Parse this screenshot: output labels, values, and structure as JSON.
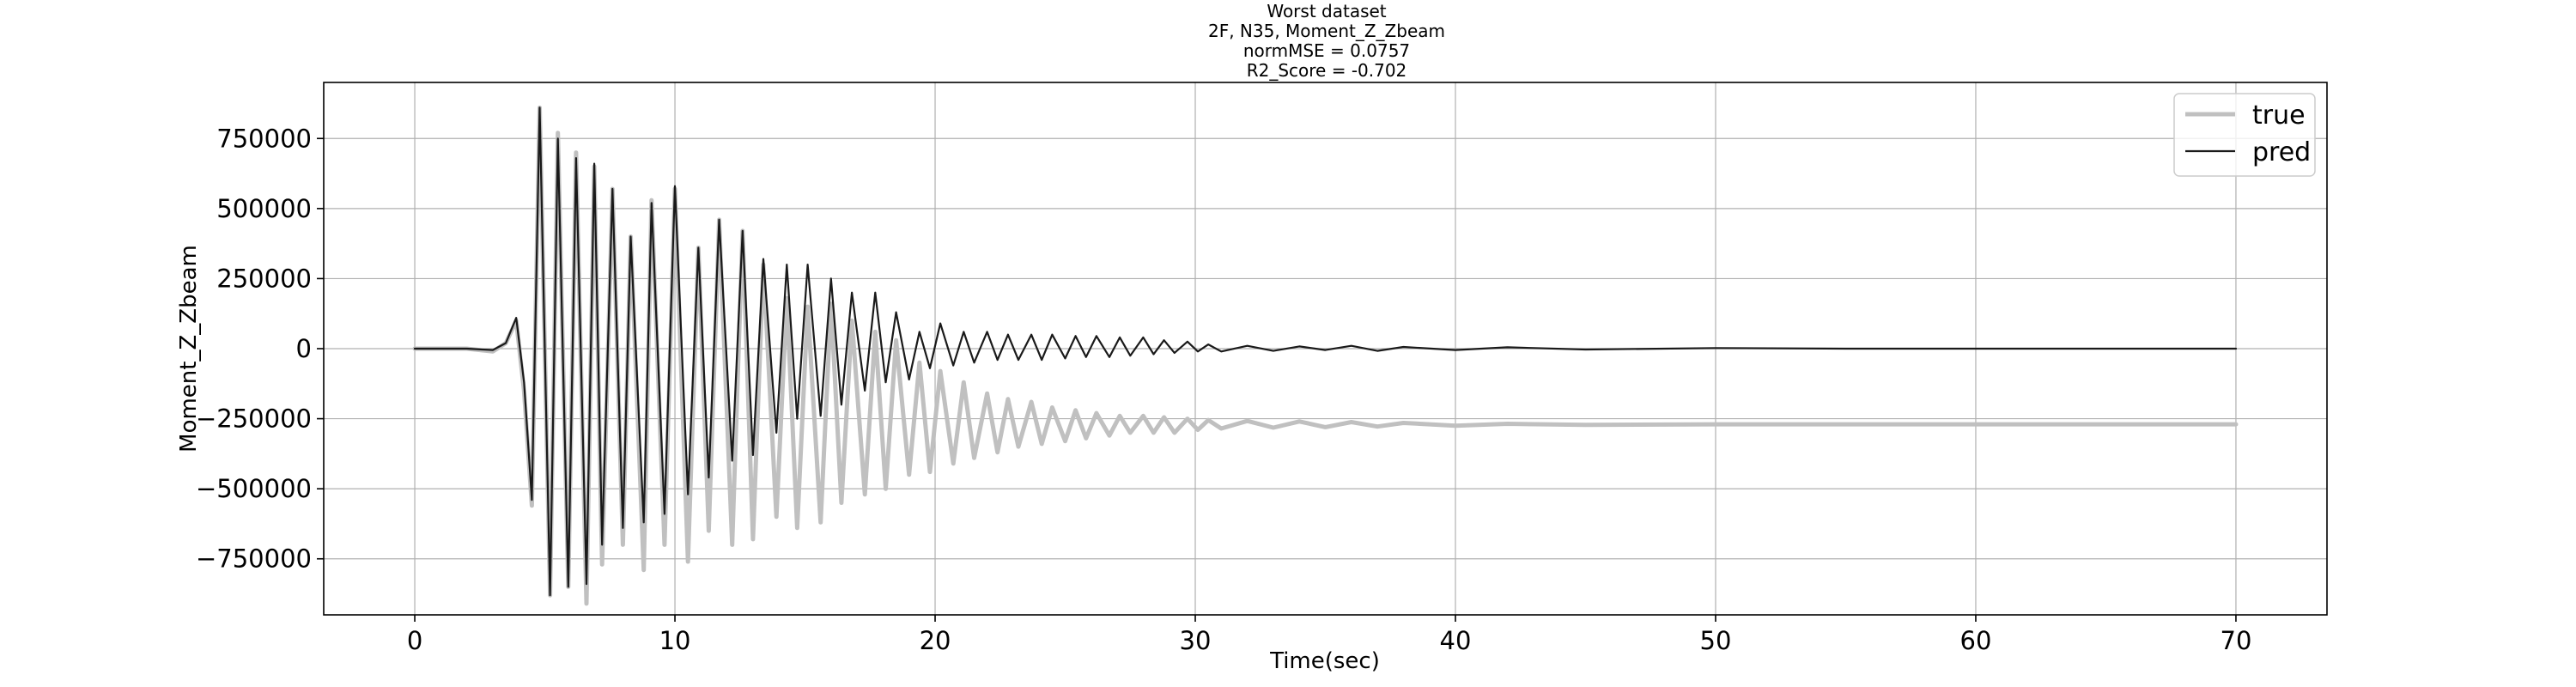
{
  "chart_data": {
    "type": "line",
    "title": "Worst dataset",
    "title_lines": [
      "Worst dataset",
      "2F, N35, Moment_Z_Zbeam",
      "normMSE = 0.0757",
      "R2_Score = -0.702"
    ],
    "xlabel": "Time(sec)",
    "ylabel": "Moment_Z_Zbeam",
    "xlim": [
      -3.5,
      73.5
    ],
    "ylim": [
      -950000,
      950000
    ],
    "xticks": [
      0,
      10,
      20,
      30,
      40,
      50,
      60,
      70
    ],
    "xtick_labels": [
      "0",
      "10",
      "20",
      "30",
      "40",
      "50",
      "60",
      "70"
    ],
    "yticks": [
      -750000,
      -500000,
      -250000,
      0,
      250000,
      500000,
      750000
    ],
    "ytick_labels": [
      "−750000",
      "−500000",
      "−250000",
      "0",
      "250000",
      "500000",
      "750000"
    ],
    "grid": true,
    "legend_position": "top-right",
    "series": [
      {
        "name": "true",
        "color": "#c0c0c0",
        "x": [
          0,
          1,
          2,
          3,
          3.5,
          3.9,
          4.2,
          4.5,
          4.8,
          5.2,
          5.5,
          5.9,
          6.2,
          6.6,
          6.9,
          7.2,
          7.6,
          8,
          8.3,
          8.8,
          9.1,
          9.6,
          10,
          10.5,
          10.9,
          11.3,
          11.7,
          12.2,
          12.6,
          13,
          13.4,
          13.9,
          14.3,
          14.7,
          15.1,
          15.6,
          16,
          16.4,
          16.8,
          17.3,
          17.7,
          18.1,
          18.5,
          19,
          19.4,
          19.8,
          20.2,
          20.7,
          21.1,
          21.5,
          22,
          22.4,
          22.8,
          23.2,
          23.7,
          24.1,
          24.5,
          25,
          25.4,
          25.8,
          26.2,
          26.7,
          27.1,
          27.5,
          28,
          28.4,
          28.8,
          29.2,
          29.7,
          30.1,
          30.5,
          31,
          32,
          33,
          34,
          35,
          36,
          37,
          38,
          40,
          42,
          45,
          50,
          55,
          60,
          65,
          70
        ],
        "y": [
          0,
          0,
          0,
          -10000,
          20000,
          100000,
          -150000,
          -560000,
          860000,
          -880000,
          770000,
          -850000,
          700000,
          -910000,
          650000,
          -770000,
          570000,
          -700000,
          400000,
          -790000,
          530000,
          -700000,
          570000,
          -760000,
          360000,
          -650000,
          460000,
          -700000,
          420000,
          -680000,
          300000,
          -600000,
          180000,
          -640000,
          150000,
          -620000,
          160000,
          -550000,
          100000,
          -520000,
          60000,
          -500000,
          30000,
          -450000,
          -50000,
          -440000,
          -80000,
          -410000,
          -120000,
          -390000,
          -160000,
          -370000,
          -180000,
          -350000,
          -190000,
          -340000,
          -210000,
          -330000,
          -220000,
          -320000,
          -230000,
          -310000,
          -240000,
          -300000,
          -240000,
          -300000,
          -245000,
          -300000,
          -250000,
          -290000,
          -255000,
          -285000,
          -258000,
          -282000,
          -260000,
          -280000,
          -262000,
          -278000,
          -265000,
          -275000,
          -268000,
          -272000,
          -270000,
          -270000,
          -270000,
          -270000,
          -270000
        ]
      },
      {
        "name": "pred",
        "color": "#1a1a1a",
        "x": [
          0,
          1,
          2,
          3,
          3.5,
          3.9,
          4.2,
          4.5,
          4.8,
          5.2,
          5.5,
          5.9,
          6.2,
          6.6,
          6.9,
          7.2,
          7.6,
          8,
          8.3,
          8.8,
          9.1,
          9.6,
          10,
          10.5,
          10.9,
          11.3,
          11.7,
          12.2,
          12.6,
          13,
          13.4,
          13.9,
          14.3,
          14.7,
          15.1,
          15.6,
          16,
          16.4,
          16.8,
          17.3,
          17.7,
          18.1,
          18.5,
          19,
          19.4,
          19.8,
          20.2,
          20.7,
          21.1,
          21.5,
          22,
          22.4,
          22.8,
          23.2,
          23.7,
          24.1,
          24.5,
          25,
          25.4,
          25.8,
          26.2,
          26.7,
          27.1,
          27.5,
          28,
          28.4,
          28.8,
          29.2,
          29.7,
          30.1,
          30.5,
          31,
          32,
          33,
          34,
          35,
          36,
          37,
          38,
          40,
          42,
          45,
          50,
          55,
          60,
          65,
          70
        ],
        "y": [
          0,
          0,
          0,
          -5000,
          20000,
          110000,
          -120000,
          -540000,
          860000,
          -880000,
          750000,
          -850000,
          680000,
          -840000,
          660000,
          -700000,
          570000,
          -640000,
          400000,
          -620000,
          520000,
          -590000,
          580000,
          -520000,
          360000,
          -460000,
          460000,
          -400000,
          420000,
          -380000,
          320000,
          -300000,
          300000,
          -250000,
          300000,
          -240000,
          250000,
          -200000,
          200000,
          -150000,
          200000,
          -120000,
          130000,
          -110000,
          60000,
          -70000,
          90000,
          -60000,
          60000,
          -50000,
          60000,
          -40000,
          50000,
          -40000,
          50000,
          -40000,
          50000,
          -35000,
          45000,
          -30000,
          45000,
          -30000,
          40000,
          -25000,
          40000,
          -20000,
          30000,
          -15000,
          25000,
          -10000,
          15000,
          -10000,
          10000,
          -8000,
          8000,
          -5000,
          10000,
          -8000,
          6000,
          -5000,
          5000,
          -3000,
          2000,
          0,
          0,
          0,
          0
        ]
      }
    ]
  }
}
